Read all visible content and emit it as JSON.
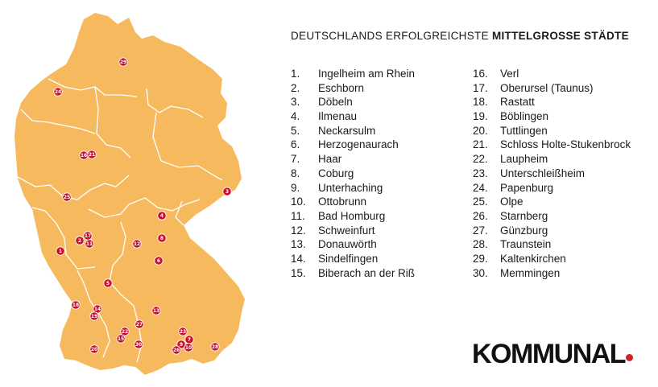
{
  "title": {
    "prefix": "DEUTSCHLANDS ERFOLGREICHSTE",
    "bold": "MITTELGROSSE STÄDTE"
  },
  "cities": [
    {
      "rank": "1.",
      "name": "Ingelheim am Rhein"
    },
    {
      "rank": "2.",
      "name": "Eschborn"
    },
    {
      "rank": "3.",
      "name": "Döbeln"
    },
    {
      "rank": "4.",
      "name": "Ilmenau"
    },
    {
      "rank": "5.",
      "name": "Neckarsulm"
    },
    {
      "rank": "6.",
      "name": "Herzogenaurach"
    },
    {
      "rank": "7.",
      "name": "Haar"
    },
    {
      "rank": "8.",
      "name": "Coburg"
    },
    {
      "rank": "9.",
      "name": "Unterhaching"
    },
    {
      "rank": "10.",
      "name": "Ottobrunn"
    },
    {
      "rank": "11.",
      "name": "Bad Homburg"
    },
    {
      "rank": "12.",
      "name": "Schweinfurt"
    },
    {
      "rank": "13.",
      "name": "Donauwörth"
    },
    {
      "rank": "14.",
      "name": "Sindelfingen"
    },
    {
      "rank": "15.",
      "name": "Biberach an der Riß"
    },
    {
      "rank": "16.",
      "name": "Verl"
    },
    {
      "rank": "17.",
      "name": "Oberursel (Taunus)"
    },
    {
      "rank": "18.",
      "name": "Rastatt"
    },
    {
      "rank": "19.",
      "name": "Böblingen"
    },
    {
      "rank": "20.",
      "name": "Tuttlingen"
    },
    {
      "rank": "21.",
      "name": "Schloss Holte-Stukenbrock"
    },
    {
      "rank": "22.",
      "name": "Laupheim"
    },
    {
      "rank": "23.",
      "name": "Unterschleißheim"
    },
    {
      "rank": "24.",
      "name": "Papenburg"
    },
    {
      "rank": "25.",
      "name": "Olpe"
    },
    {
      "rank": "26.",
      "name": "Starnberg"
    },
    {
      "rank": "27.",
      "name": "Günzburg"
    },
    {
      "rank": "28.",
      "name": "Traunstein"
    },
    {
      "rank": "29.",
      "name": "Kaltenkirchen"
    },
    {
      "rank": "30.",
      "name": "Memmingen"
    }
  ],
  "map_pins": [
    "1",
    "2",
    "3",
    "4",
    "5",
    "6",
    "7",
    "8",
    "9",
    "10",
    "11",
    "12",
    "13",
    "14",
    "15",
    "16",
    "17",
    "18",
    "19",
    "20",
    "21",
    "22",
    "23",
    "24",
    "25",
    "26",
    "27",
    "28",
    "29",
    "30"
  ],
  "brand": {
    "name": "KOMMUNAL",
    "dot_color": "#d0202a"
  },
  "colors": {
    "map_fill": "#f7b95e",
    "border": "#ffffff",
    "pin": "#c8102e"
  }
}
